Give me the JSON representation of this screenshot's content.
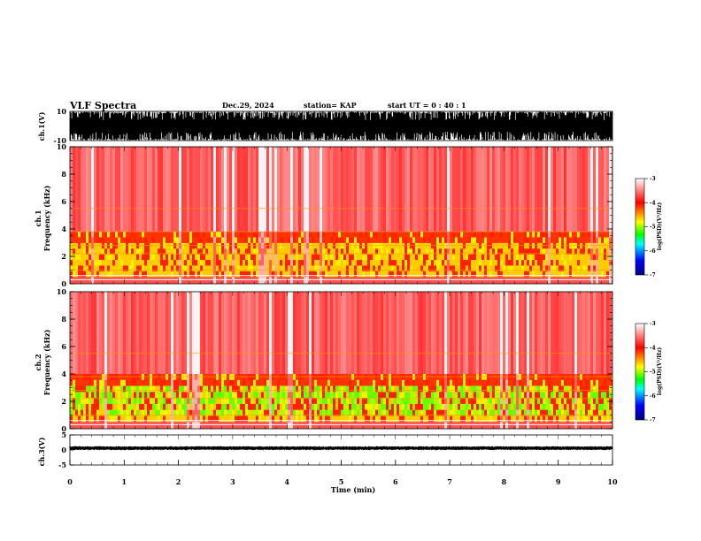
{
  "header": {
    "title": "VLF Spectra",
    "date": "Dec.29, 2024",
    "station": "station= KAP",
    "start": "start  UT =   0 : 40 : 1"
  },
  "colorbar": {
    "label": "log(PSD)(V²/Hz)",
    "ticks": [
      "-3",
      "-4",
      "-5",
      "-6",
      "-7"
    ],
    "stops": [
      "#ffffff",
      "#ff0000",
      "#ffff00",
      "#00ff00",
      "#00ffff",
      "#0000ff",
      "#000080"
    ]
  },
  "chart_data": [
    {
      "type": "line",
      "name": "ch1 waveform",
      "ylabel": "ch.1(V)",
      "ylim": [
        -10,
        10
      ],
      "ytick_labels": [
        "10",
        "-10"
      ],
      "xlim": [
        0,
        10
      ],
      "description_level": "saturated full-scale signal between -10 and 10"
    },
    {
      "type": "heatmap",
      "ylabel": "ch.1\nFrequency (kHz)",
      "ylabel_lines": [
        "ch.1",
        "Frequency  (kHz)"
      ],
      "ylim": [
        0,
        10
      ],
      "ytick_labels": [
        "0",
        "2",
        "4",
        "6",
        "8",
        "10"
      ],
      "xlim": [
        0,
        10
      ],
      "zlim": [
        -7,
        -3
      ],
      "strong_band_khz": [
        0.5,
        3.8
      ]
    },
    {
      "type": "heatmap",
      "ylabel_lines": [
        "ch.2",
        "Frequency  (kHz)"
      ],
      "ylim": [
        0,
        10
      ],
      "ytick_labels": [
        "0",
        "2",
        "4",
        "6",
        "8",
        "10"
      ],
      "xlim": [
        0,
        10
      ],
      "zlim": [
        -7,
        -3
      ],
      "strong_band_khz": [
        0.5,
        4.0
      ]
    },
    {
      "type": "line",
      "ylabel": "ch.3(V)",
      "ylim": [
        -5,
        5
      ],
      "ytick_labels": [
        "5",
        "0",
        "-5"
      ],
      "xlim": [
        0,
        10
      ],
      "xlabel": "Time  (min)",
      "xtick_labels": [
        "0",
        "1",
        "2",
        "3",
        "4",
        "5",
        "6",
        "7",
        "8",
        "9",
        "10"
      ]
    }
  ]
}
